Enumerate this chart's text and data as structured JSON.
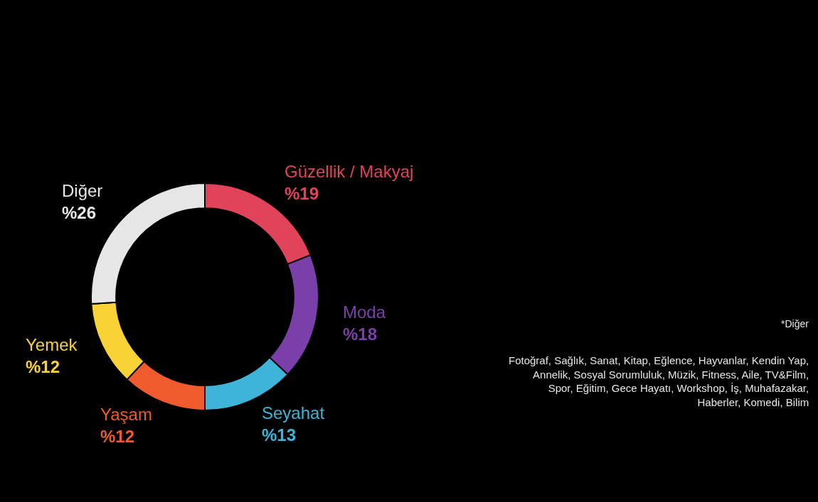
{
  "chart_data": {
    "type": "donut",
    "categories": [
      "Güzellik / Makyaj",
      "Moda",
      "Seyahat",
      "Yaşam",
      "Yemek",
      "Diğer"
    ],
    "values": [
      19,
      18,
      13,
      12,
      12,
      26
    ],
    "value_labels": [
      "%19",
      "%18",
      "%13",
      "%12",
      "%12",
      "%26"
    ],
    "colors": [
      "#e0435a",
      "#7a3fa8",
      "#3db4d8",
      "#f05a2c",
      "#f9d236",
      "#e6e6e6"
    ],
    "legend": false,
    "annotations": [
      "*Diğer",
      "Fotoğraf, Sağlık, Sanat, Kitap, Eğlence, Hayvanlar, Kendin Yap,\nAnnelik, Sosyal Sorumluluk, Müzik, Fitness, Aile, TV&Film,\nSpor, Eğitim, Gece Hayatı, Workshop, İş, Muhafazakar,\nHaberler, Komedi, Bilim"
    ]
  }
}
